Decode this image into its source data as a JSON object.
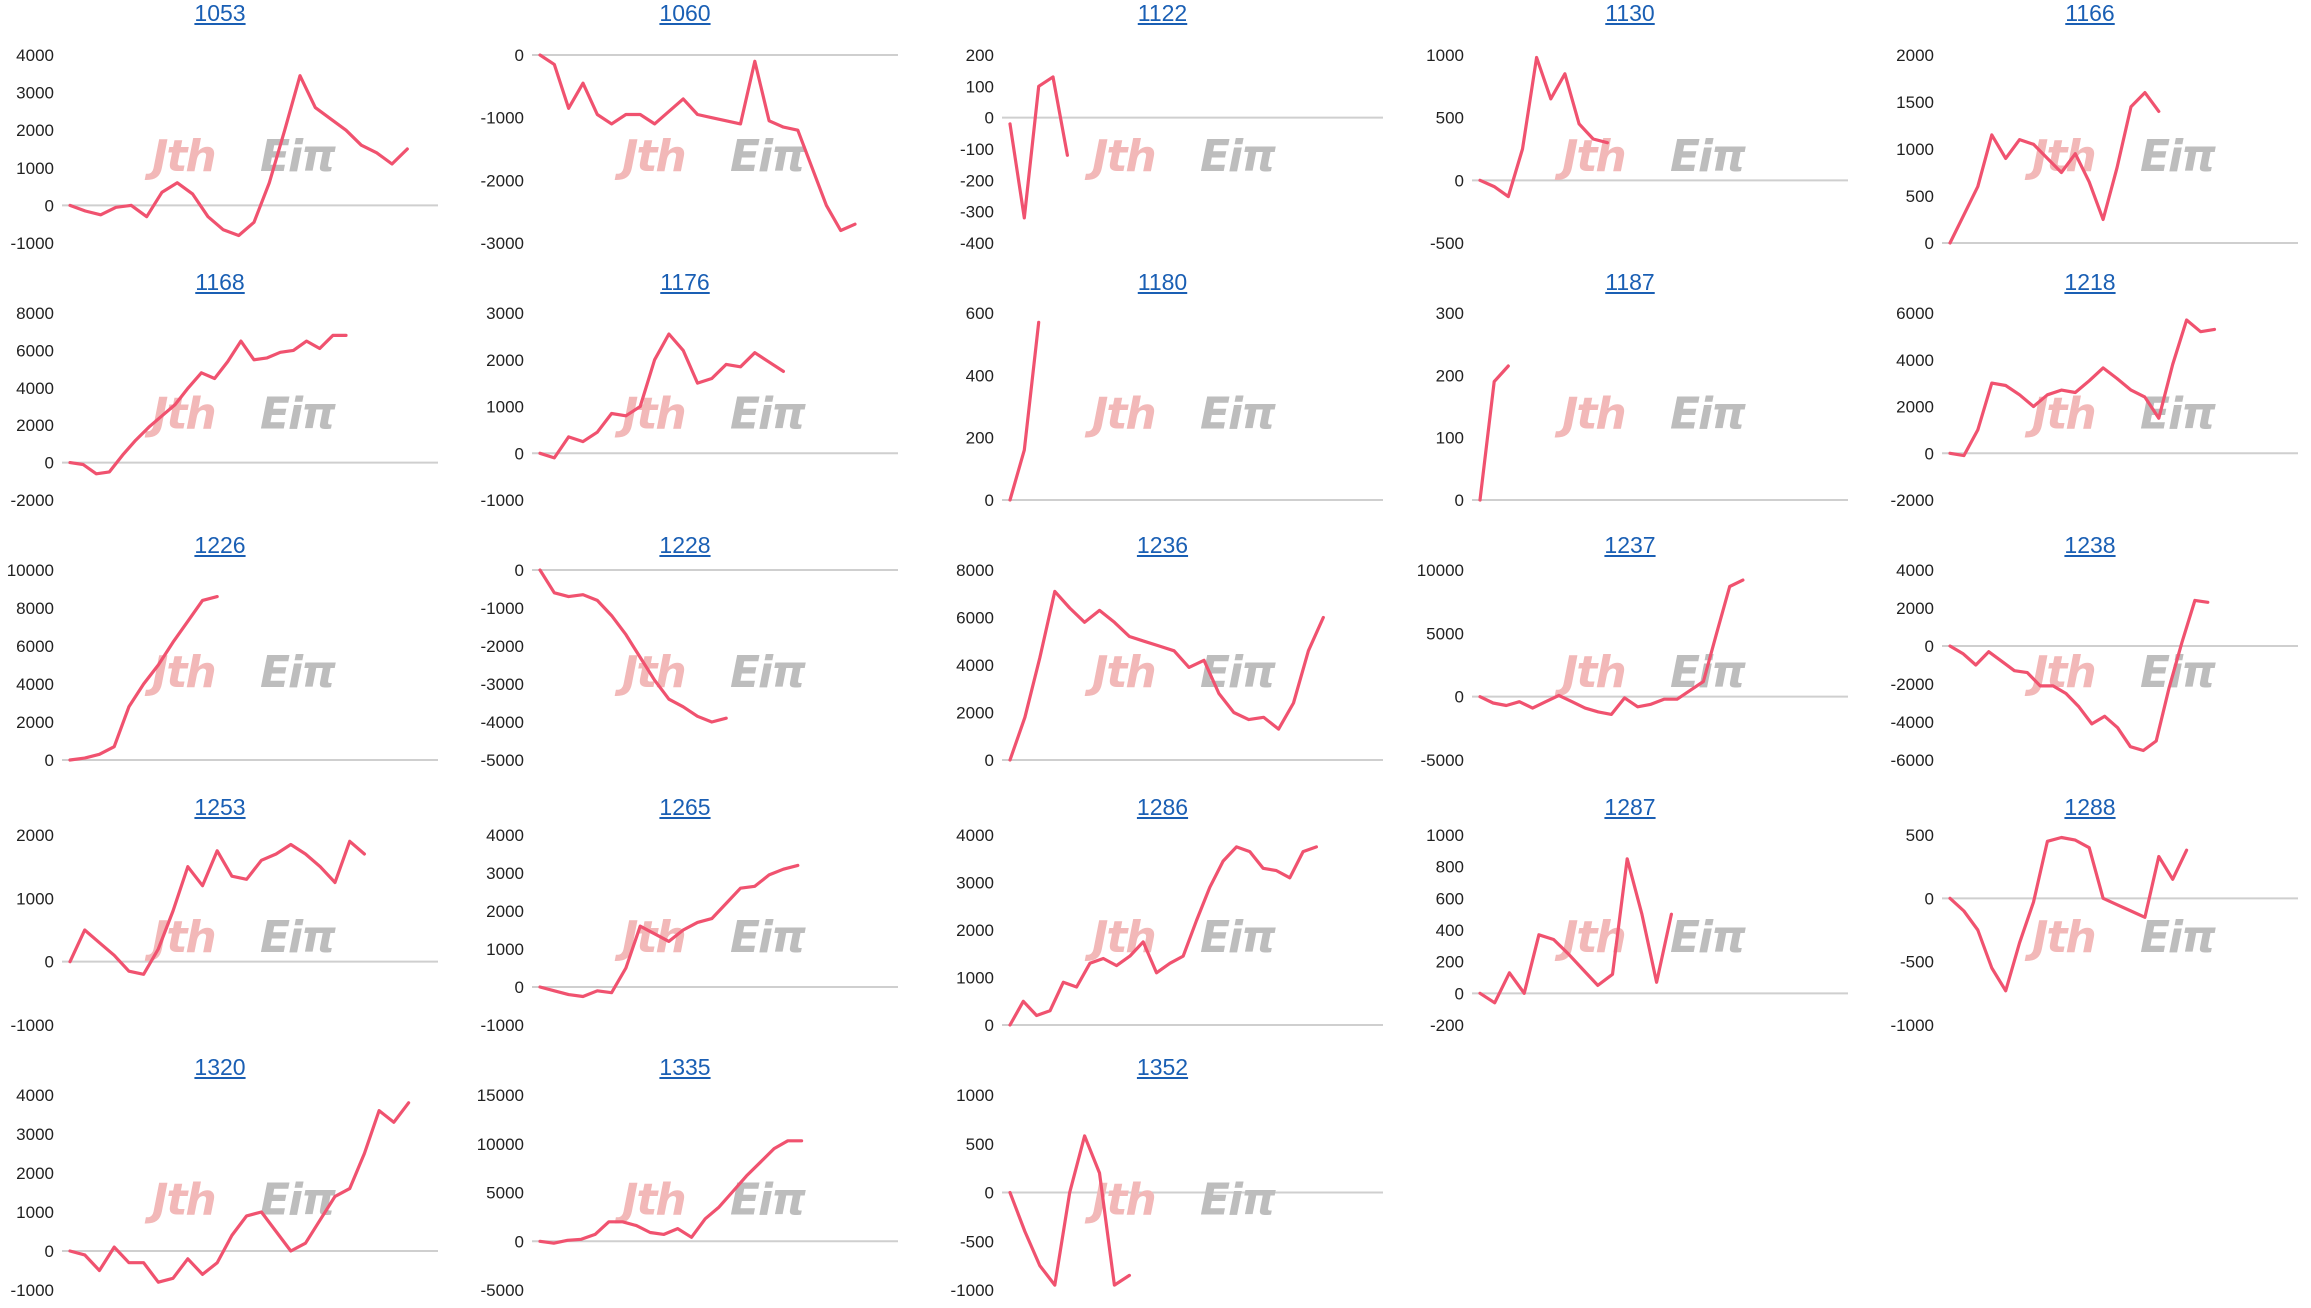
{
  "colors": {
    "series": "#f0526f",
    "axis": "#cfcfcf",
    "title": "#1a5fb4",
    "watermark_red": "#f2b8b8",
    "watermark_gray": "#bdbdbd"
  },
  "chart_data": [
    {
      "type": "line",
      "title": "1053",
      "grid": false,
      "legend": "none",
      "yticks": [
        -1000,
        0,
        1000,
        2000,
        3000,
        4000
      ],
      "ylim": [
        -1000,
        4000
      ],
      "xmax": 24,
      "values": [
        0,
        -150,
        -250,
        -50,
        0,
        -300,
        350,
        600,
        300,
        -300,
        -650,
        -800,
        -450,
        600,
        2000,
        3450,
        2600,
        2300,
        2000,
        1600,
        1400,
        1100,
        1500
      ]
    },
    {
      "type": "line",
      "title": "1060",
      "grid": false,
      "legend": "none",
      "yticks": [
        -3000,
        -2000,
        -1000,
        0
      ],
      "ylim": [
        -3000,
        0
      ],
      "xmax": 25,
      "values": [
        0,
        -150,
        -850,
        -450,
        -950,
        -1100,
        -950,
        -950,
        -1100,
        -900,
        -700,
        -950,
        -1000,
        -1050,
        -1100,
        -100,
        -1050,
        -1150,
        -1200,
        -1800,
        -2400,
        -2800,
        -2700
      ]
    },
    {
      "type": "line",
      "title": "1122",
      "grid": false,
      "legend": "none",
      "yticks": [
        -400,
        -300,
        -200,
        -100,
        0,
        100,
        200
      ],
      "ylim": [
        -400,
        200
      ],
      "xmax": 26,
      "values": [
        -20,
        -320,
        100,
        130,
        -120
      ]
    },
    {
      "type": "line",
      "title": "1130",
      "grid": false,
      "legend": "none",
      "yticks": [
        -500,
        0,
        500,
        1000
      ],
      "ylim": [
        -500,
        1000
      ],
      "xmax": 26,
      "values": [
        0,
        -50,
        -130,
        250,
        980,
        650,
        850,
        450,
        330,
        300
      ]
    },
    {
      "type": "line",
      "title": "1166",
      "grid": false,
      "legend": "none",
      "yticks": [
        0,
        500,
        1000,
        1500,
        2000
      ],
      "ylim": [
        0,
        2000
      ],
      "xmax": 25,
      "values": [
        0,
        300,
        600,
        1150,
        900,
        1100,
        1050,
        900,
        750,
        950,
        650,
        250,
        800,
        1450,
        1600,
        1400
      ]
    },
    {
      "type": "line",
      "title": "1168",
      "grid": false,
      "legend": "none",
      "yticks": [
        -2000,
        0,
        2000,
        4000,
        6000,
        8000
      ],
      "ylim": [
        -2000,
        8000
      ],
      "xmax": 28,
      "values": [
        0,
        -100,
        -600,
        -500,
        400,
        1200,
        1900,
        2500,
        3100,
        4000,
        4800,
        4500,
        5400,
        6500,
        5500,
        5600,
        5900,
        6000,
        6500,
        6100,
        6800,
        6800
      ]
    },
    {
      "type": "line",
      "title": "1176",
      "grid": false,
      "legend": "none",
      "yticks": [
        -1000,
        0,
        1000,
        2000,
        3000
      ],
      "ylim": [
        -1000,
        3000
      ],
      "xmax": 25,
      "values": [
        0,
        -100,
        350,
        250,
        450,
        850,
        800,
        1000,
        2000,
        2550,
        2200,
        1500,
        1600,
        1900,
        1850,
        2150,
        1950,
        1750
      ]
    },
    {
      "type": "line",
      "title": "1180",
      "grid": false,
      "legend": "none",
      "yticks": [
        0,
        200,
        400,
        600
      ],
      "ylim": [
        0,
        600
      ],
      "xmax": 26,
      "values": [
        0,
        160,
        570
      ]
    },
    {
      "type": "line",
      "title": "1187",
      "grid": false,
      "legend": "none",
      "yticks": [
        0,
        100,
        200,
        300
      ],
      "ylim": [
        0,
        300
      ],
      "xmax": 26,
      "values": [
        0,
        190,
        215
      ]
    },
    {
      "type": "line",
      "title": "1218",
      "grid": false,
      "legend": "none",
      "yticks": [
        -2000,
        0,
        2000,
        4000,
        6000
      ],
      "ylim": [
        -2000,
        6000
      ],
      "xmax": 25,
      "values": [
        0,
        -100,
        1000,
        3000,
        2900,
        2500,
        2000,
        2500,
        2700,
        2600,
        3100,
        3650,
        3200,
        2700,
        2400,
        1500,
        3800,
        5700,
        5200,
        5300
      ]
    },
    {
      "type": "line",
      "title": "1226",
      "grid": false,
      "legend": "none",
      "yticks": [
        0,
        2000,
        4000,
        6000,
        8000,
        10000
      ],
      "ylim": [
        0,
        10000
      ],
      "xmax": 25,
      "values": [
        0,
        100,
        300,
        700,
        2800,
        4000,
        5000,
        6200,
        7300,
        8400,
        8600
      ]
    },
    {
      "type": "line",
      "title": "1228",
      "grid": false,
      "legend": "none",
      "yticks": [
        -5000,
        -4000,
        -3000,
        -2000,
        -1000,
        0
      ],
      "ylim": [
        -5000,
        0
      ],
      "xmax": 25,
      "values": [
        0,
        -600,
        -700,
        -650,
        -800,
        -1200,
        -1700,
        -2300,
        -2900,
        -3400,
        -3600,
        -3850,
        -4000,
        -3900
      ]
    },
    {
      "type": "line",
      "title": "1236",
      "grid": false,
      "legend": "none",
      "yticks": [
        0,
        2000,
        4000,
        6000,
        8000
      ],
      "ylim": [
        0,
        8000
      ],
      "xmax": 25,
      "values": [
        0,
        1800,
        4300,
        7100,
        6400,
        5800,
        6300,
        5800,
        5200,
        5000,
        4800,
        4600,
        3900,
        4200,
        2800,
        2000,
        1700,
        1800,
        1300,
        2400,
        4600,
        6000
      ]
    },
    {
      "type": "line",
      "title": "1237",
      "grid": false,
      "legend": "none",
      "yticks": [
        -5000,
        0,
        5000,
        10000
      ],
      "ylim": [
        -5000,
        10000
      ],
      "xmax": 28,
      "values": [
        0,
        -500,
        -700,
        -400,
        -900,
        -400,
        100,
        -400,
        -900,
        -1200,
        -1400,
        -100,
        -800,
        -600,
        -200,
        -200,
        500,
        1200,
        5000,
        8700,
        9200
      ]
    },
    {
      "type": "line",
      "title": "1238",
      "grid": false,
      "legend": "none",
      "yticks": [
        -6000,
        -4000,
        -2000,
        0,
        2000,
        4000
      ],
      "ylim": [
        -6000,
        4000
      ],
      "xmax": 27,
      "values": [
        0,
        -400,
        -1000,
        -300,
        -800,
        -1300,
        -1400,
        -2100,
        -2100,
        -2500,
        -3200,
        -4100,
        -3700,
        -4300,
        -5300,
        -5500,
        -5000,
        -2200,
        200,
        2400,
        2300
      ]
    },
    {
      "type": "line",
      "title": "1253",
      "grid": false,
      "legend": "none",
      "yticks": [
        -1000,
        0,
        1000,
        2000
      ],
      "ylim": [
        -1000,
        2000
      ],
      "xmax": 25,
      "values": [
        0,
        500,
        300,
        100,
        -150,
        -200,
        200,
        800,
        1500,
        1200,
        1750,
        1350,
        1300,
        1600,
        1700,
        1850,
        1700,
        1500,
        1250,
        1900,
        1700
      ]
    },
    {
      "type": "line",
      "title": "1265",
      "grid": false,
      "legend": "none",
      "yticks": [
        -1000,
        0,
        1000,
        2000,
        3000,
        4000
      ],
      "ylim": [
        -1000,
        4000
      ],
      "xmax": 25,
      "values": [
        0,
        -100,
        -200,
        -250,
        -100,
        -150,
        500,
        1600,
        1400,
        1200,
        1500,
        1700,
        1800,
        2200,
        2600,
        2650,
        2950,
        3100,
        3200
      ]
    },
    {
      "type": "line",
      "title": "1286",
      "grid": false,
      "legend": "none",
      "yticks": [
        0,
        1000,
        2000,
        3000,
        4000
      ],
      "ylim": [
        0,
        4000
      ],
      "xmax": 28,
      "values": [
        0,
        500,
        200,
        300,
        900,
        800,
        1300,
        1400,
        1250,
        1450,
        1750,
        1100,
        1300,
        1450,
        2200,
        2900,
        3450,
        3750,
        3650,
        3300,
        3250,
        3100,
        3650,
        3750
      ]
    },
    {
      "type": "line",
      "title": "1287",
      "grid": false,
      "legend": "none",
      "yticks": [
        -200,
        0,
        200,
        400,
        600,
        800,
        1000
      ],
      "ylim": [
        -200,
        1000
      ],
      "xmax": 25,
      "values": [
        0,
        -60,
        130,
        0,
        370,
        340,
        250,
        150,
        50,
        120,
        850,
        500,
        70,
        500
      ]
    },
    {
      "type": "line",
      "title": "1288",
      "grid": false,
      "legend": "none",
      "yticks": [
        -1000,
        -500,
        0,
        500
      ],
      "ylim": [
        -1000,
        500
      ],
      "xmax": 25,
      "values": [
        0,
        -100,
        -250,
        -550,
        -730,
        -350,
        -30,
        450,
        480,
        460,
        400,
        0,
        -50,
        -100,
        -150,
        330,
        150,
        380
      ]
    },
    {
      "type": "line",
      "title": "1320",
      "grid": false,
      "legend": "none",
      "yticks": [
        -1000,
        0,
        1000,
        2000,
        3000,
        4000
      ],
      "ylim": [
        -1000,
        4000
      ],
      "xmax": 25,
      "values": [
        0,
        -100,
        -500,
        100,
        -300,
        -300,
        -800,
        -700,
        -200,
        -600,
        -300,
        400,
        900,
        1000,
        500,
        0,
        200,
        800,
        1400,
        1600,
        2500,
        3600,
        3300,
        3800
      ]
    },
    {
      "type": "line",
      "title": "1335",
      "grid": false,
      "legend": "none",
      "yticks": [
        -5000,
        0,
        5000,
        10000,
        15000
      ],
      "ylim": [
        -5000,
        15000
      ],
      "xmax": 26,
      "values": [
        0,
        -200,
        100,
        200,
        700,
        2000,
        2000,
        1600,
        900,
        700,
        1300,
        400,
        2300,
        3500,
        5100,
        6700,
        8100,
        9500,
        10300,
        10300
      ]
    },
    {
      "type": "line",
      "title": "1352",
      "grid": false,
      "legend": "none",
      "yticks": [
        -1000,
        -500,
        0,
        500,
        1000
      ],
      "ylim": [
        -1000,
        1000
      ],
      "xmax": 25,
      "values": [
        0,
        -400,
        -750,
        -950,
        0,
        580,
        200,
        -950,
        -850
      ]
    }
  ]
}
